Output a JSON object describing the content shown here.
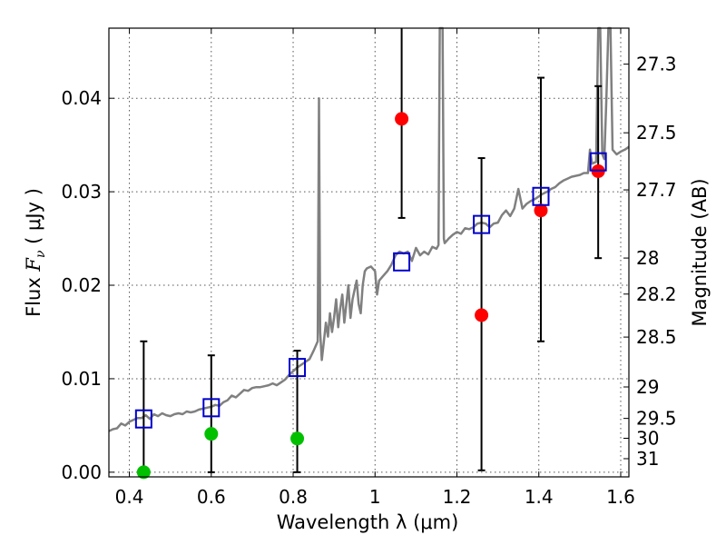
{
  "chart_data": {
    "type": "scatter",
    "xlabel": "Wavelength  λ (μm)",
    "ylabel_prefix": "Flux  ",
    "ylabel_symbol": "F",
    "ylabel_subscript": "ν",
    "ylabel_suffix": "  ( μJy )",
    "y2label": "Magnitude (AB)",
    "xlim": [
      0.35,
      1.62
    ],
    "ylim": [
      -0.0005,
      0.0475
    ],
    "grid": true,
    "x_ticks": [
      0.4,
      0.6,
      0.8,
      1.0,
      1.2,
      1.4,
      1.6
    ],
    "x_tick_labels": [
      "0.4",
      "0.6",
      "0.8",
      "1",
      "1.2",
      "1.4",
      "1.6"
    ],
    "y_ticks": [
      0.0,
      0.01,
      0.02,
      0.03,
      0.04
    ],
    "y_tick_labels": [
      "0.00",
      "0.01",
      "0.02",
      "0.03",
      "0.04"
    ],
    "y2_ticks": [
      27.3,
      27.5,
      27.7,
      28,
      28.2,
      28.5,
      29,
      29.5,
      30,
      31
    ],
    "y2_tick_labels": [
      "27.3",
      "27.5",
      "27.7",
      "28",
      "28.2",
      "28.5",
      "29",
      "29.5",
      "30",
      "31"
    ],
    "observed_red": [
      {
        "x": 1.065,
        "y": 0.0378,
        "err_low": 0.0272,
        "err_high": 0.0475
      },
      {
        "x": 1.26,
        "y": 0.0168,
        "err_low": 0.0002,
        "err_high": 0.0336
      },
      {
        "x": 1.405,
        "y": 0.028,
        "err_low": 0.014,
        "err_high": 0.0422
      },
      {
        "x": 1.545,
        "y": 0.0322,
        "err_low": 0.0229,
        "err_high": 0.0413
      }
    ],
    "observed_green": [
      {
        "x": 0.435,
        "y": 0.0,
        "err_low": 0.0,
        "err_high": 0.014
      },
      {
        "x": 0.6,
        "y": 0.0041,
        "err_low": 0.0,
        "err_high": 0.0125
      },
      {
        "x": 0.81,
        "y": 0.0036,
        "err_low": 0.0,
        "err_high": 0.013
      }
    ],
    "model_bands": [
      {
        "x": 0.435,
        "y": 0.0057
      },
      {
        "x": 0.6,
        "y": 0.0069
      },
      {
        "x": 0.81,
        "y": 0.0112
      },
      {
        "x": 1.065,
        "y": 0.0225
      },
      {
        "x": 1.26,
        "y": 0.0265
      },
      {
        "x": 1.405,
        "y": 0.0295
      },
      {
        "x": 1.545,
        "y": 0.0332
      }
    ],
    "sed_spectrum": [
      [
        0.35,
        0.0044
      ],
      [
        0.36,
        0.0046
      ],
      [
        0.37,
        0.0047
      ],
      [
        0.38,
        0.0052
      ],
      [
        0.39,
        0.005
      ],
      [
        0.4,
        0.0054
      ],
      [
        0.41,
        0.0056
      ],
      [
        0.42,
        0.0058
      ],
      [
        0.43,
        0.0058
      ],
      [
        0.44,
        0.0061
      ],
      [
        0.45,
        0.0057
      ],
      [
        0.46,
        0.0062
      ],
      [
        0.47,
        0.006
      ],
      [
        0.48,
        0.0063
      ],
      [
        0.49,
        0.0061
      ],
      [
        0.5,
        0.006
      ],
      [
        0.51,
        0.0062
      ],
      [
        0.52,
        0.0063
      ],
      [
        0.53,
        0.0062
      ],
      [
        0.54,
        0.0065
      ],
      [
        0.55,
        0.0064
      ],
      [
        0.56,
        0.0065
      ],
      [
        0.57,
        0.0067
      ],
      [
        0.58,
        0.0068
      ],
      [
        0.59,
        0.0069
      ],
      [
        0.6,
        0.007
      ],
      [
        0.61,
        0.0072
      ],
      [
        0.62,
        0.0071
      ],
      [
        0.63,
        0.0075
      ],
      [
        0.64,
        0.0077
      ],
      [
        0.65,
        0.0082
      ],
      [
        0.66,
        0.008
      ],
      [
        0.67,
        0.0084
      ],
      [
        0.68,
        0.0088
      ],
      [
        0.69,
        0.0087
      ],
      [
        0.7,
        0.009
      ],
      [
        0.71,
        0.0091
      ],
      [
        0.72,
        0.0091
      ],
      [
        0.73,
        0.0092
      ],
      [
        0.74,
        0.0093
      ],
      [
        0.75,
        0.0095
      ],
      [
        0.76,
        0.0093
      ],
      [
        0.77,
        0.0096
      ],
      [
        0.78,
        0.0099
      ],
      [
        0.79,
        0.0104
      ],
      [
        0.8,
        0.0108
      ],
      [
        0.81,
        0.0112
      ],
      [
        0.82,
        0.0115
      ],
      [
        0.83,
        0.0118
      ],
      [
        0.84,
        0.0121
      ],
      [
        0.85,
        0.013
      ],
      [
        0.86,
        0.014
      ],
      [
        0.863,
        0.04
      ],
      [
        0.866,
        0.015
      ],
      [
        0.87,
        0.012
      ],
      [
        0.875,
        0.014
      ],
      [
        0.88,
        0.016
      ],
      [
        0.885,
        0.0145
      ],
      [
        0.89,
        0.017
      ],
      [
        0.895,
        0.015
      ],
      [
        0.9,
        0.0165
      ],
      [
        0.905,
        0.0185
      ],
      [
        0.91,
        0.0155
      ],
      [
        0.915,
        0.0175
      ],
      [
        0.92,
        0.019
      ],
      [
        0.925,
        0.016
      ],
      [
        0.93,
        0.018
      ],
      [
        0.935,
        0.02
      ],
      [
        0.94,
        0.0165
      ],
      [
        0.945,
        0.0185
      ],
      [
        0.95,
        0.0195
      ],
      [
        0.955,
        0.0205
      ],
      [
        0.96,
        0.018
      ],
      [
        0.965,
        0.017
      ],
      [
        0.97,
        0.02
      ],
      [
        0.975,
        0.0215
      ],
      [
        0.98,
        0.0218
      ],
      [
        0.99,
        0.022
      ],
      [
        1.0,
        0.0215
      ],
      [
        1.005,
        0.019
      ],
      [
        1.01,
        0.0205
      ],
      [
        1.02,
        0.021
      ],
      [
        1.03,
        0.0215
      ],
      [
        1.04,
        0.0222
      ],
      [
        1.05,
        0.0232
      ],
      [
        1.06,
        0.0236
      ],
      [
        1.07,
        0.0234
      ],
      [
        1.08,
        0.0236
      ],
      [
        1.09,
        0.0226
      ],
      [
        1.1,
        0.024
      ],
      [
        1.11,
        0.0232
      ],
      [
        1.12,
        0.0236
      ],
      [
        1.13,
        0.0233
      ],
      [
        1.14,
        0.0241
      ],
      [
        1.15,
        0.0239
      ],
      [
        1.155,
        0.0243
      ],
      [
        1.158,
        0.0475
      ],
      [
        1.162,
        0.0475
      ],
      [
        1.165,
        0.0475
      ],
      [
        1.168,
        0.025
      ],
      [
        1.17,
        0.0245
      ],
      [
        1.18,
        0.025
      ],
      [
        1.19,
        0.0254
      ],
      [
        1.2,
        0.0257
      ],
      [
        1.21,
        0.0255
      ],
      [
        1.22,
        0.0261
      ],
      [
        1.23,
        0.026
      ],
      [
        1.24,
        0.0262
      ],
      [
        1.25,
        0.0266
      ],
      [
        1.26,
        0.0267
      ],
      [
        1.27,
        0.0266
      ],
      [
        1.28,
        0.0262
      ],
      [
        1.29,
        0.0266
      ],
      [
        1.3,
        0.0267
      ],
      [
        1.31,
        0.0275
      ],
      [
        1.32,
        0.028
      ],
      [
        1.33,
        0.0274
      ],
      [
        1.34,
        0.0282
      ],
      [
        1.35,
        0.0303
      ],
      [
        1.36,
        0.0282
      ],
      [
        1.37,
        0.0287
      ],
      [
        1.38,
        0.029
      ],
      [
        1.39,
        0.0292
      ],
      [
        1.4,
        0.0295
      ],
      [
        1.41,
        0.0298
      ],
      [
        1.42,
        0.03
      ],
      [
        1.43,
        0.0303
      ],
      [
        1.44,
        0.0305
      ],
      [
        1.45,
        0.0309
      ],
      [
        1.46,
        0.0312
      ],
      [
        1.47,
        0.0314
      ],
      [
        1.48,
        0.0316
      ],
      [
        1.49,
        0.0317
      ],
      [
        1.5,
        0.0318
      ],
      [
        1.51,
        0.032
      ],
      [
        1.52,
        0.032
      ],
      [
        1.525,
        0.0345
      ],
      [
        1.53,
        0.033
      ],
      [
        1.54,
        0.0332
      ],
      [
        1.545,
        0.0475
      ],
      [
        1.55,
        0.0475
      ],
      [
        1.555,
        0.034
      ],
      [
        1.56,
        0.0335
      ],
      [
        1.565,
        0.04
      ],
      [
        1.57,
        0.0475
      ],
      [
        1.575,
        0.0475
      ],
      [
        1.58,
        0.0345
      ],
      [
        1.59,
        0.034
      ],
      [
        1.6,
        0.0343
      ],
      [
        1.61,
        0.0345
      ],
      [
        1.62,
        0.0348
      ]
    ],
    "colors": {
      "spectrum": "#808080",
      "red": "#ff0000",
      "green": "#00c000",
      "model": "#0000cc",
      "errorbar": "#000000"
    }
  }
}
